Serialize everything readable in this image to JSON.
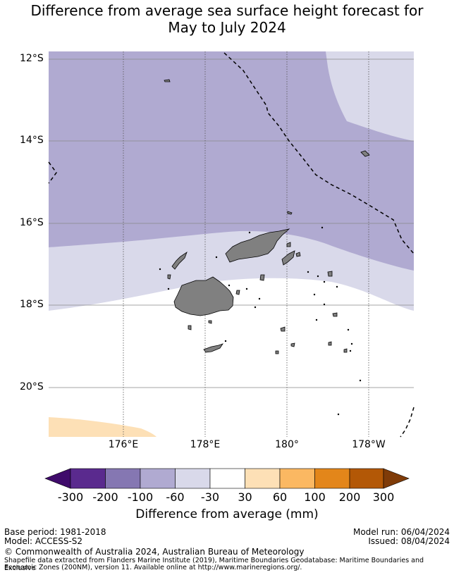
{
  "title_line1": "Difference from average sea surface height forecast for",
  "title_line2": "May to July 2024",
  "map": {
    "lat_labels": [
      "12°S",
      "14°S",
      "16°S",
      "18°S",
      "20°S"
    ],
    "lon_labels": [
      "176°E",
      "178°E",
      "180°",
      "178°W"
    ],
    "colors": {
      "band_minus60_minus100": "#b0aad1",
      "band_minus30_minus60": "#d9d9ea",
      "band_30_60": "#fde0b6",
      "land": "#808080",
      "eez_boundary": "#000000"
    }
  },
  "colorbar": {
    "ticks": [
      "-300",
      "-200",
      "-100",
      "-60",
      "-30",
      "30",
      "60",
      "100",
      "200",
      "300"
    ],
    "colors": [
      "#3f0b6b",
      "#5a2a8e",
      "#8577b2",
      "#b0aad1",
      "#d9d9ea",
      "#ffffff",
      "#fde0b6",
      "#fbb862",
      "#e3861a",
      "#b35806",
      "#7f3b08"
    ],
    "label": "Difference from average (mm)"
  },
  "footer": {
    "base_period": "Base period: 1981-2018",
    "model": "Model: ACCESS-S2",
    "model_run": "Model run: 06/04/2024",
    "issued": "Issued: 08/04/2024",
    "copyright": "© Commonwealth of Australia 2024, Australian Bureau of Meteorology",
    "shapefile_line1": "Shapefile data extracted from Flanders Marine Institute (2019), Maritime Boundaries Geodatabase: Maritime Boundaries and Exclusive",
    "shapefile_line2": "Economic Zones (200NM), version 11. Available online at http://www.marineregions.org/."
  }
}
